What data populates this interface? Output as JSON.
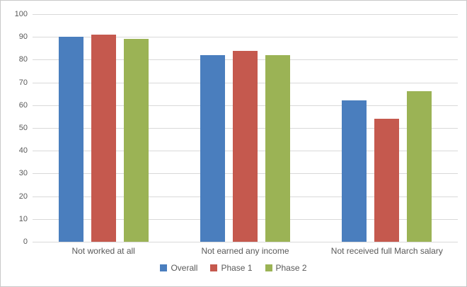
{
  "chart_data": {
    "type": "bar",
    "title": "",
    "categories": [
      "Not worked at all",
      "Not earned any income",
      "Not received full March salary"
    ],
    "series": [
      {
        "name": "Overall",
        "color": "#4A7EBE",
        "values": [
          90,
          82,
          62
        ]
      },
      {
        "name": "Phase 1",
        "color": "#C5594E",
        "values": [
          91,
          84,
          54
        ]
      },
      {
        "name": "Phase 2",
        "color": "#9BB355",
        "values": [
          89,
          82,
          66
        ]
      }
    ],
    "ylim": [
      0,
      100
    ],
    "yticks": [
      0,
      10,
      20,
      30,
      40,
      50,
      60,
      70,
      80,
      90,
      100
    ],
    "xlabel": "",
    "ylabel": "",
    "grid": true,
    "legend_position": "bottom",
    "colors": {
      "gridline": "#d9d9d9",
      "axis_text": "#595959",
      "background": "#ffffff",
      "border": "#c9c9c9"
    }
  }
}
